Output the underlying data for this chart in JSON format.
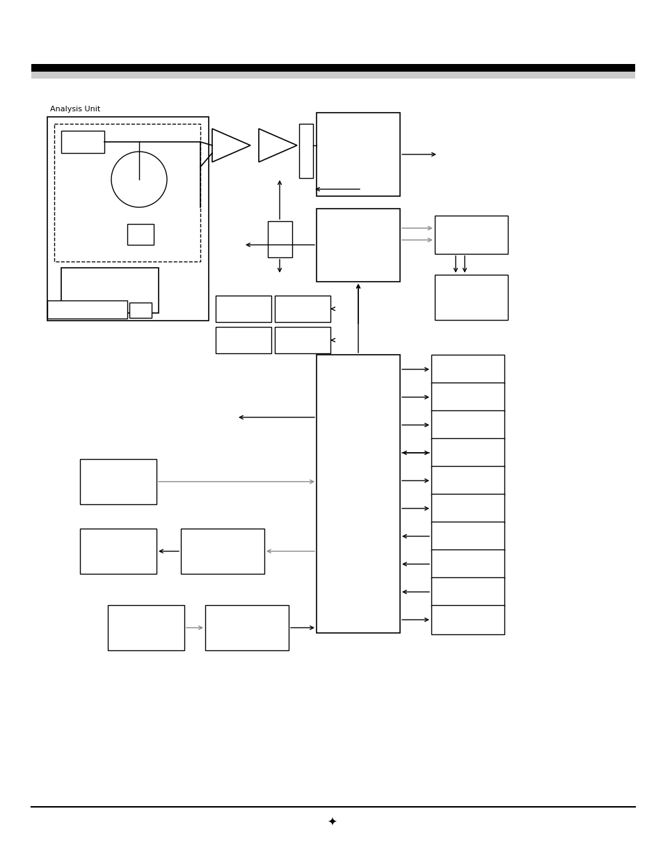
{
  "bg_color": "#ffffff",
  "fig_width": 9.54,
  "fig_height": 12.35,
  "dpi": 100
}
